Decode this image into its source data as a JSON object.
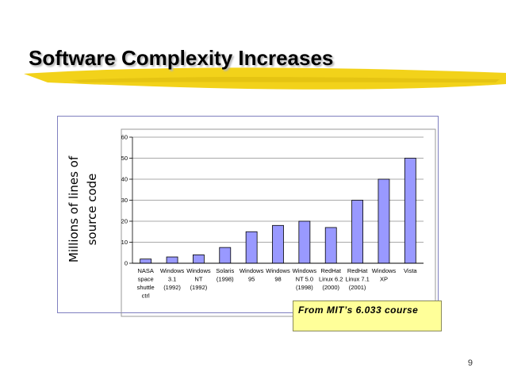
{
  "slide": {
    "title": "Software Complexity Increases",
    "source_note": "From MIT’s 6.033 course",
    "page_number": "9"
  },
  "colors": {
    "bar_fill": "#9999ff",
    "bar_stroke": "#000000",
    "title_swash": "#f2d21a",
    "note_background": "#ffff99",
    "frame_border": "#7f7fbf"
  },
  "chart_data": {
    "type": "bar",
    "title": "",
    "xlabel": "",
    "ylabel": "Millions of lines of source code",
    "ylabel_lines": [
      "Millions of lines of",
      "source code"
    ],
    "ylim": [
      0,
      60
    ],
    "yticks": [
      0,
      10,
      20,
      30,
      40,
      50,
      60
    ],
    "grid": true,
    "legend": false,
    "categories": [
      [
        "NASA",
        "space",
        "shuttle",
        "ctrl"
      ],
      [
        "Windows",
        "3.1",
        "(1992)"
      ],
      [
        "Windows",
        "NT",
        "(1992)"
      ],
      [
        "Solaris",
        "(1998)"
      ],
      [
        "Windows",
        "95"
      ],
      [
        "Windows",
        "98"
      ],
      [
        "Windows",
        "NT 5.0",
        "(1998)"
      ],
      [
        "RedHat",
        "Linux 6.2",
        "(2000)"
      ],
      [
        "RedHat",
        "Linux 7.1",
        "(2001)"
      ],
      [
        "Windows",
        "XP"
      ],
      [
        "Vista"
      ]
    ],
    "values": [
      2,
      3,
      4,
      7.5,
      15,
      18,
      20,
      17,
      30,
      40,
      50
    ]
  }
}
